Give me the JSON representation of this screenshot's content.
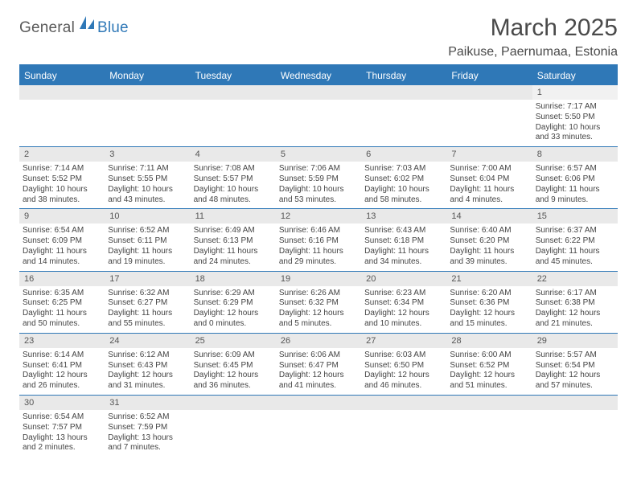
{
  "logo": {
    "text_a": "General",
    "text_b": "Blue"
  },
  "title": "March 2025",
  "location": "Paikuse, Paernumaa, Estonia",
  "headers": [
    "Sunday",
    "Monday",
    "Tuesday",
    "Wednesday",
    "Thursday",
    "Friday",
    "Saturday"
  ],
  "colors": {
    "brand": "#2f78b7",
    "header_bg": "#2f78b7",
    "daynum_bg": "#e9e9e9",
    "text": "#444444"
  },
  "weeks": [
    [
      {
        "n": "",
        "sunrise": "",
        "sunset": "",
        "day1": "",
        "day2": ""
      },
      {
        "n": "",
        "sunrise": "",
        "sunset": "",
        "day1": "",
        "day2": ""
      },
      {
        "n": "",
        "sunrise": "",
        "sunset": "",
        "day1": "",
        "day2": ""
      },
      {
        "n": "",
        "sunrise": "",
        "sunset": "",
        "day1": "",
        "day2": ""
      },
      {
        "n": "",
        "sunrise": "",
        "sunset": "",
        "day1": "",
        "day2": ""
      },
      {
        "n": "",
        "sunrise": "",
        "sunset": "",
        "day1": "",
        "day2": ""
      },
      {
        "n": "1",
        "sunrise": "Sunrise: 7:17 AM",
        "sunset": "Sunset: 5:50 PM",
        "day1": "Daylight: 10 hours",
        "day2": "and 33 minutes."
      }
    ],
    [
      {
        "n": "2",
        "sunrise": "Sunrise: 7:14 AM",
        "sunset": "Sunset: 5:52 PM",
        "day1": "Daylight: 10 hours",
        "day2": "and 38 minutes."
      },
      {
        "n": "3",
        "sunrise": "Sunrise: 7:11 AM",
        "sunset": "Sunset: 5:55 PM",
        "day1": "Daylight: 10 hours",
        "day2": "and 43 minutes."
      },
      {
        "n": "4",
        "sunrise": "Sunrise: 7:08 AM",
        "sunset": "Sunset: 5:57 PM",
        "day1": "Daylight: 10 hours",
        "day2": "and 48 minutes."
      },
      {
        "n": "5",
        "sunrise": "Sunrise: 7:06 AM",
        "sunset": "Sunset: 5:59 PM",
        "day1": "Daylight: 10 hours",
        "day2": "and 53 minutes."
      },
      {
        "n": "6",
        "sunrise": "Sunrise: 7:03 AM",
        "sunset": "Sunset: 6:02 PM",
        "day1": "Daylight: 10 hours",
        "day2": "and 58 minutes."
      },
      {
        "n": "7",
        "sunrise": "Sunrise: 7:00 AM",
        "sunset": "Sunset: 6:04 PM",
        "day1": "Daylight: 11 hours",
        "day2": "and 4 minutes."
      },
      {
        "n": "8",
        "sunrise": "Sunrise: 6:57 AM",
        "sunset": "Sunset: 6:06 PM",
        "day1": "Daylight: 11 hours",
        "day2": "and 9 minutes."
      }
    ],
    [
      {
        "n": "9",
        "sunrise": "Sunrise: 6:54 AM",
        "sunset": "Sunset: 6:09 PM",
        "day1": "Daylight: 11 hours",
        "day2": "and 14 minutes."
      },
      {
        "n": "10",
        "sunrise": "Sunrise: 6:52 AM",
        "sunset": "Sunset: 6:11 PM",
        "day1": "Daylight: 11 hours",
        "day2": "and 19 minutes."
      },
      {
        "n": "11",
        "sunrise": "Sunrise: 6:49 AM",
        "sunset": "Sunset: 6:13 PM",
        "day1": "Daylight: 11 hours",
        "day2": "and 24 minutes."
      },
      {
        "n": "12",
        "sunrise": "Sunrise: 6:46 AM",
        "sunset": "Sunset: 6:16 PM",
        "day1": "Daylight: 11 hours",
        "day2": "and 29 minutes."
      },
      {
        "n": "13",
        "sunrise": "Sunrise: 6:43 AM",
        "sunset": "Sunset: 6:18 PM",
        "day1": "Daylight: 11 hours",
        "day2": "and 34 minutes."
      },
      {
        "n": "14",
        "sunrise": "Sunrise: 6:40 AM",
        "sunset": "Sunset: 6:20 PM",
        "day1": "Daylight: 11 hours",
        "day2": "and 39 minutes."
      },
      {
        "n": "15",
        "sunrise": "Sunrise: 6:37 AM",
        "sunset": "Sunset: 6:22 PM",
        "day1": "Daylight: 11 hours",
        "day2": "and 45 minutes."
      }
    ],
    [
      {
        "n": "16",
        "sunrise": "Sunrise: 6:35 AM",
        "sunset": "Sunset: 6:25 PM",
        "day1": "Daylight: 11 hours",
        "day2": "and 50 minutes."
      },
      {
        "n": "17",
        "sunrise": "Sunrise: 6:32 AM",
        "sunset": "Sunset: 6:27 PM",
        "day1": "Daylight: 11 hours",
        "day2": "and 55 minutes."
      },
      {
        "n": "18",
        "sunrise": "Sunrise: 6:29 AM",
        "sunset": "Sunset: 6:29 PM",
        "day1": "Daylight: 12 hours",
        "day2": "and 0 minutes."
      },
      {
        "n": "19",
        "sunrise": "Sunrise: 6:26 AM",
        "sunset": "Sunset: 6:32 PM",
        "day1": "Daylight: 12 hours",
        "day2": "and 5 minutes."
      },
      {
        "n": "20",
        "sunrise": "Sunrise: 6:23 AM",
        "sunset": "Sunset: 6:34 PM",
        "day1": "Daylight: 12 hours",
        "day2": "and 10 minutes."
      },
      {
        "n": "21",
        "sunrise": "Sunrise: 6:20 AM",
        "sunset": "Sunset: 6:36 PM",
        "day1": "Daylight: 12 hours",
        "day2": "and 15 minutes."
      },
      {
        "n": "22",
        "sunrise": "Sunrise: 6:17 AM",
        "sunset": "Sunset: 6:38 PM",
        "day1": "Daylight: 12 hours",
        "day2": "and 21 minutes."
      }
    ],
    [
      {
        "n": "23",
        "sunrise": "Sunrise: 6:14 AM",
        "sunset": "Sunset: 6:41 PM",
        "day1": "Daylight: 12 hours",
        "day2": "and 26 minutes."
      },
      {
        "n": "24",
        "sunrise": "Sunrise: 6:12 AM",
        "sunset": "Sunset: 6:43 PM",
        "day1": "Daylight: 12 hours",
        "day2": "and 31 minutes."
      },
      {
        "n": "25",
        "sunrise": "Sunrise: 6:09 AM",
        "sunset": "Sunset: 6:45 PM",
        "day1": "Daylight: 12 hours",
        "day2": "and 36 minutes."
      },
      {
        "n": "26",
        "sunrise": "Sunrise: 6:06 AM",
        "sunset": "Sunset: 6:47 PM",
        "day1": "Daylight: 12 hours",
        "day2": "and 41 minutes."
      },
      {
        "n": "27",
        "sunrise": "Sunrise: 6:03 AM",
        "sunset": "Sunset: 6:50 PM",
        "day1": "Daylight: 12 hours",
        "day2": "and 46 minutes."
      },
      {
        "n": "28",
        "sunrise": "Sunrise: 6:00 AM",
        "sunset": "Sunset: 6:52 PM",
        "day1": "Daylight: 12 hours",
        "day2": "and 51 minutes."
      },
      {
        "n": "29",
        "sunrise": "Sunrise: 5:57 AM",
        "sunset": "Sunset: 6:54 PM",
        "day1": "Daylight: 12 hours",
        "day2": "and 57 minutes."
      }
    ],
    [
      {
        "n": "30",
        "sunrise": "Sunrise: 6:54 AM",
        "sunset": "Sunset: 7:57 PM",
        "day1": "Daylight: 13 hours",
        "day2": "and 2 minutes."
      },
      {
        "n": "31",
        "sunrise": "Sunrise: 6:52 AM",
        "sunset": "Sunset: 7:59 PM",
        "day1": "Daylight: 13 hours",
        "day2": "and 7 minutes."
      },
      {
        "n": "",
        "sunrise": "",
        "sunset": "",
        "day1": "",
        "day2": ""
      },
      {
        "n": "",
        "sunrise": "",
        "sunset": "",
        "day1": "",
        "day2": ""
      },
      {
        "n": "",
        "sunrise": "",
        "sunset": "",
        "day1": "",
        "day2": ""
      },
      {
        "n": "",
        "sunrise": "",
        "sunset": "",
        "day1": "",
        "day2": ""
      },
      {
        "n": "",
        "sunrise": "",
        "sunset": "",
        "day1": "",
        "day2": ""
      }
    ]
  ]
}
